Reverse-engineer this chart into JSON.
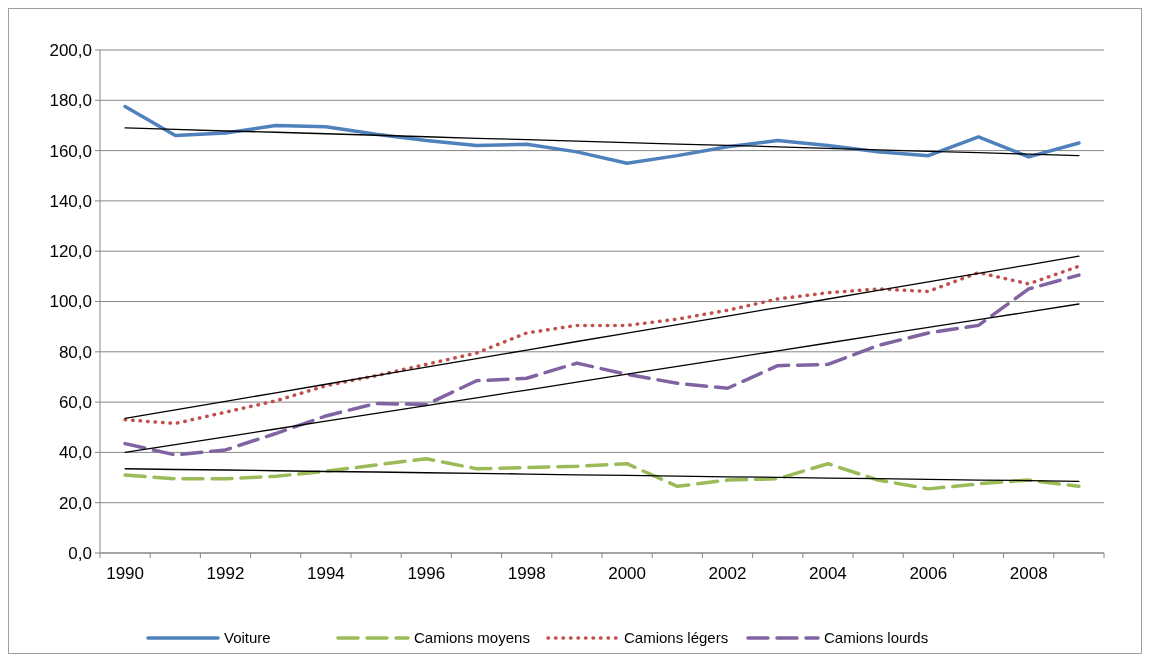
{
  "chart_data": {
    "type": "line",
    "categories": [
      "1990",
      null,
      "1992",
      null,
      "1994",
      null,
      "1996",
      null,
      "1998",
      null,
      "2000",
      null,
      "2002",
      null,
      "2004",
      null,
      "2006",
      null,
      "2008",
      null
    ],
    "series": [
      {
        "name": "Voiture",
        "color": "#4f81bd",
        "line_style": "solid",
        "values": [
          177.5,
          166,
          167,
          170,
          169.5,
          166.5,
          164,
          162,
          162.5,
          159.5,
          155,
          158,
          161.5,
          164,
          162,
          159.5,
          158,
          165.5,
          157.5,
          163
        ]
      },
      {
        "name": "Camions moyens",
        "color": "#9bbb59",
        "line_style": "dashed",
        "values": [
          31,
          29.5,
          29.5,
          30.5,
          32.5,
          35,
          37.5,
          33.5,
          34,
          34.5,
          35.5,
          26.5,
          29,
          29.5,
          35.5,
          29,
          25.5,
          27.5,
          29,
          26.5
        ]
      },
      {
        "name": "Camions légers",
        "color": "#c0504d",
        "line_style": "dotted",
        "values": [
          53,
          51.5,
          56,
          60.5,
          66.5,
          70.5,
          75,
          79.5,
          87.5,
          90.5,
          90.5,
          93,
          96.5,
          101,
          103.5,
          105,
          104,
          111.5,
          107,
          114
        ]
      },
      {
        "name": "Camions lourds",
        "color": "#8064a2",
        "line_style": "dashed",
        "values": [
          43.5,
          39,
          41,
          47.5,
          54.5,
          59.5,
          59,
          68.5,
          69.5,
          75.5,
          71,
          67.5,
          65.5,
          74.5,
          75,
          82.5,
          87.5,
          90.5,
          105,
          110.5
        ]
      },
      {
        "color": "#000000",
        "values": [
          169,
          168.4,
          167.8,
          167.3,
          166.7,
          166.1,
          165.5,
          164.9,
          164.4,
          163.8,
          163.2,
          162.6,
          162.1,
          161.5,
          160.9,
          160.3,
          159.7,
          159.2,
          158.6,
          158
        ]
      },
      {
        "color": "#000000",
        "values": [
          33.5,
          33.2,
          33,
          32.7,
          32.4,
          32.2,
          31.9,
          31.7,
          31.4,
          31.1,
          30.9,
          30.6,
          30.3,
          30.1,
          29.8,
          29.6,
          29.3,
          29,
          28.8,
          28.5
        ]
      },
      {
        "color": "#000000",
        "values": [
          53.5,
          56.9,
          60.3,
          63.7,
          67.1,
          70.5,
          73.9,
          77.3,
          80.7,
          84.1,
          87.4,
          90.8,
          94.2,
          97.6,
          101,
          104.4,
          107.8,
          111.2,
          114.6,
          118
        ]
      },
      {
        "color": "#000000",
        "values": [
          40,
          43.1,
          46.2,
          49.3,
          52.4,
          55.5,
          58.6,
          61.7,
          64.8,
          67.9,
          71.1,
          74.2,
          77.3,
          80.4,
          83.5,
          86.6,
          89.7,
          92.8,
          95.9,
          99
        ]
      }
    ],
    "ylim": [
      0,
      200
    ],
    "yticks": [
      {
        "value": 0,
        "label": "0,0"
      },
      {
        "value": 20,
        "label": "20,0"
      },
      {
        "value": 40,
        "label": "40,0"
      },
      {
        "value": 60,
        "label": "60,0"
      },
      {
        "value": 80,
        "label": "80,0"
      },
      {
        "value": 100,
        "label": "100,0"
      },
      {
        "value": 120,
        "label": "120,0"
      },
      {
        "value": 140,
        "label": "140,0"
      },
      {
        "value": 160,
        "label": "160,0"
      },
      {
        "value": 180,
        "label": "180,0"
      },
      {
        "value": 200,
        "label": "200,0"
      }
    ],
    "grid": "y",
    "legend": "bottom",
    "marker": "none"
  }
}
